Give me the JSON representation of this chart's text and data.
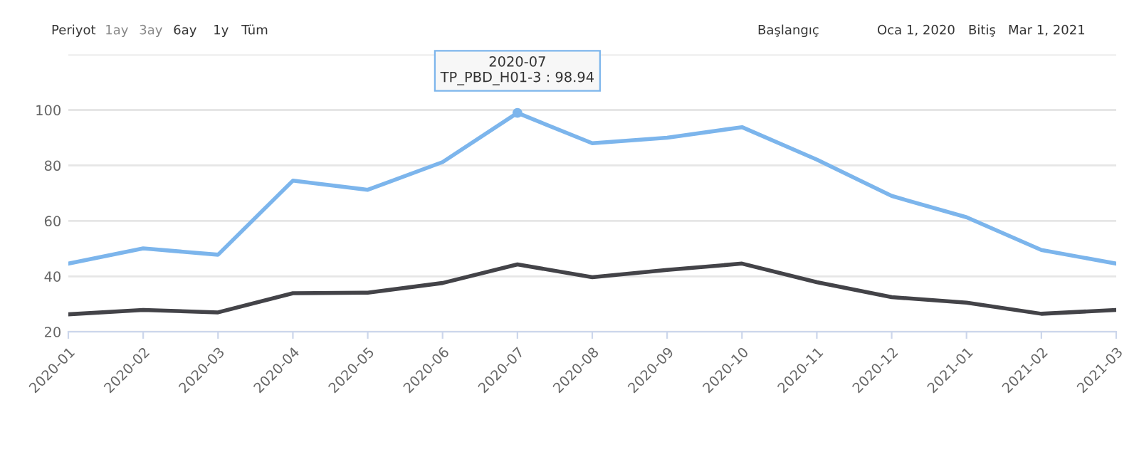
{
  "chart_data": {
    "type": "line",
    "categories": [
      "2020-01",
      "2020-02",
      "2020-03",
      "2020-04",
      "2020-05",
      "2020-06",
      "2020-07",
      "2020-08",
      "2020-09",
      "2020-10",
      "2020-11",
      "2020-12",
      "2021-01",
      "2021-02",
      "2021-03"
    ],
    "series": [
      {
        "color": "#7cb5ec",
        "values": [
          44.6,
          50.1,
          47.8,
          74.5,
          71.2,
          81.2,
          98.94,
          88.0,
          90.0,
          93.8,
          82.1,
          69.0,
          61.3,
          49.5,
          44.6
        ]
      },
      {
        "color": "#434348",
        "values": [
          26.3,
          27.9,
          27.0,
          33.9,
          34.1,
          37.6,
          44.3,
          39.7,
          42.3,
          44.6,
          37.9,
          32.5,
          30.5,
          26.5,
          27.9
        ]
      }
    ],
    "ylim": [
      20,
      120
    ],
    "yticks": [
      20,
      40,
      60,
      80,
      100,
      {
        "value": 120,
        "label": null
      }
    ],
    "grid": "y",
    "legend": false,
    "marker": "none",
    "line_style": "solid",
    "annotations": [
      {
        "text": "2020-07\nTP_PBD_H01-3 : 98.94",
        "x": "2020-07",
        "y": 98.94
      },
      "Periyot",
      "1ay",
      "3ay",
      "6ay",
      "1y",
      "Tüm",
      "Başlangıç",
      "Oca 1, 2020",
      "Bitiş",
      "Mar 1, 2021"
    ]
  }
}
